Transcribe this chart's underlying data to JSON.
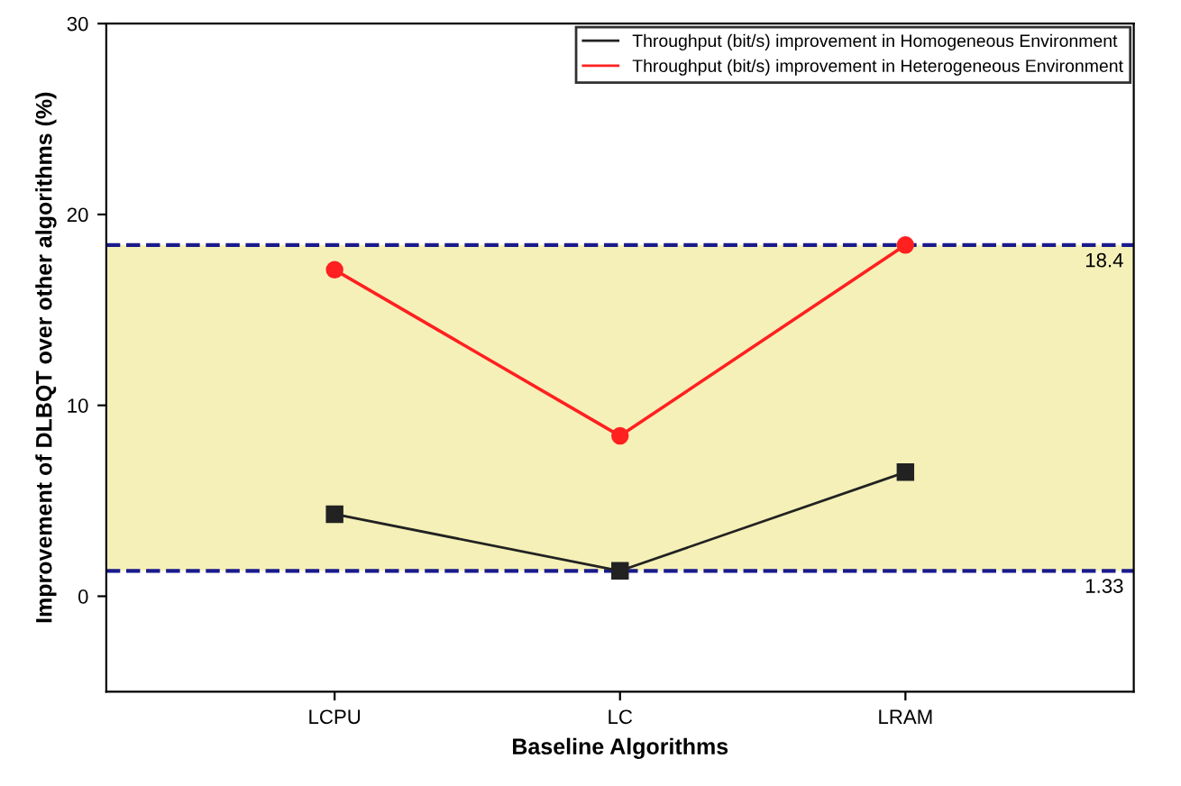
{
  "chart_data": {
    "type": "line",
    "xlabel": "Baseline Algorithms",
    "ylabel": "Improvement of DLBQT over other algorithms (%)",
    "categories": [
      "LCPU",
      "LC",
      "LRAM"
    ],
    "series": [
      {
        "name": "Throughput (bit/s) improvement in Homogeneous Environment",
        "color": "#222222",
        "marker": "square",
        "values": [
          4.3,
          1.33,
          6.5
        ]
      },
      {
        "name": "Throughput (bit/s) improvement in Heterogeneous Environment",
        "color": "#ff2020",
        "marker": "circle",
        "values": [
          17.1,
          8.4,
          18.4
        ]
      }
    ],
    "ylim": [
      -5,
      30
    ],
    "yticks": [
      0,
      10,
      20,
      30
    ],
    "bands": [
      {
        "axis": "y",
        "from": 1.33,
        "to": 18.4,
        "color": "#f5f0b8"
      }
    ],
    "ref_lines": [
      {
        "axis": "y",
        "value": 18.4,
        "label": "18.4",
        "color": "#1a1a8c",
        "line_style": "dashed"
      },
      {
        "axis": "y",
        "value": 1.33,
        "label": "1.33",
        "color": "#1a1a8c",
        "line_style": "dashed"
      }
    ],
    "grid": false,
    "legend": "top right",
    "line_style": "solid"
  }
}
